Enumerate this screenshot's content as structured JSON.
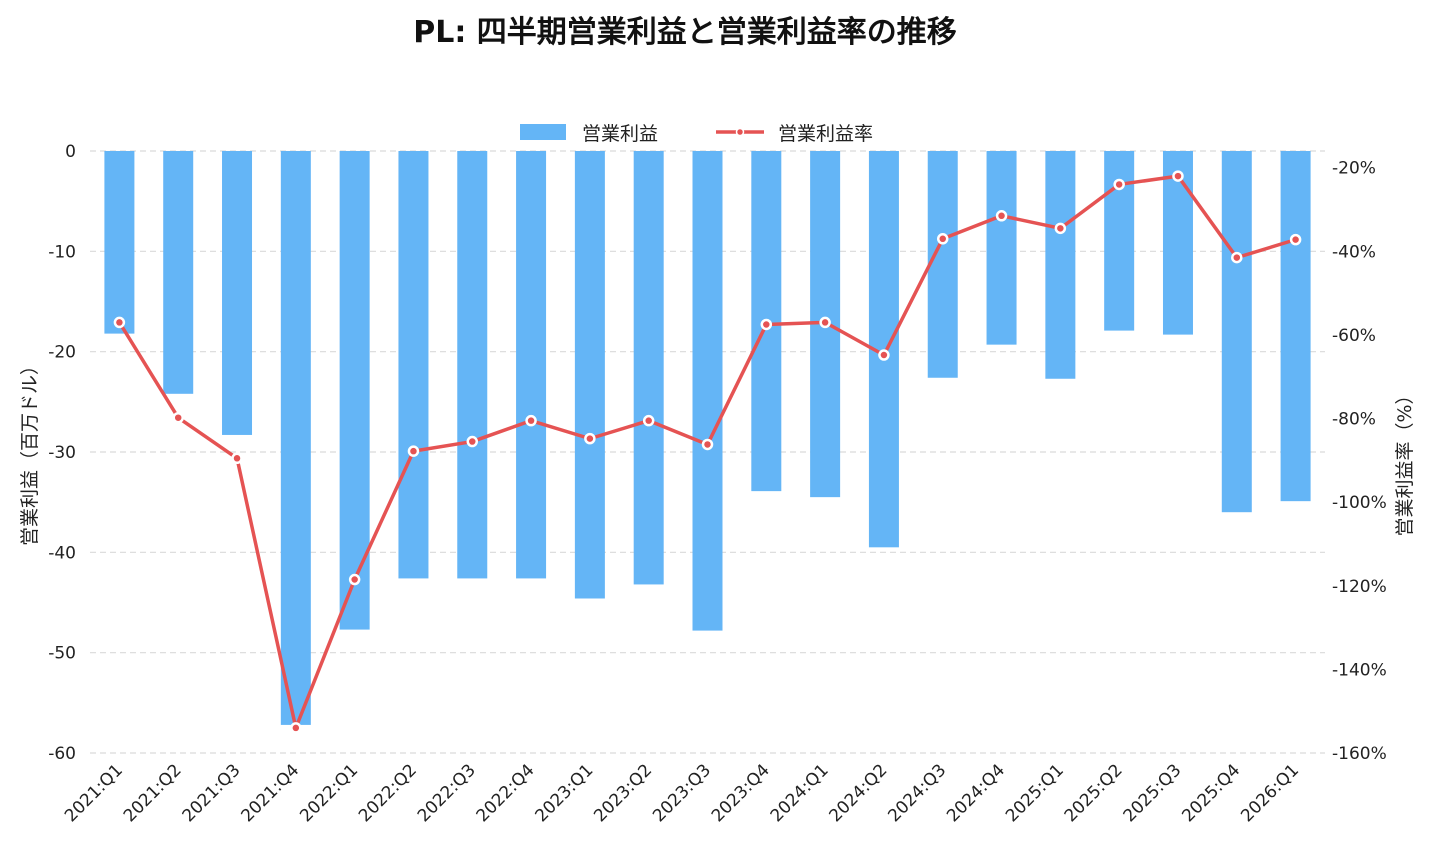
{
  "chart_data": {
    "type": "bar",
    "title": "PL: 四半期営業利益と営業利益率の推移",
    "categories": [
      "2021:Q1",
      "2021:Q2",
      "2021:Q3",
      "2021:Q4",
      "2022:Q1",
      "2022:Q2",
      "2022:Q3",
      "2022:Q4",
      "2023:Q1",
      "2023:Q2",
      "2023:Q3",
      "2023:Q4",
      "2024:Q1",
      "2024:Q2",
      "2024:Q3",
      "2024:Q4",
      "2025:Q1",
      "2025:Q2",
      "2025:Q3",
      "2025:Q4",
      "2026:Q1"
    ],
    "series": [
      {
        "name": "営業利益",
        "type": "bar",
        "axis": "left",
        "color": "#64B5F6",
        "values": [
          -18.2,
          -24.2,
          -28.3,
          -57.2,
          -47.7,
          -42.6,
          -42.6,
          -42.6,
          -44.6,
          -43.2,
          -47.8,
          -33.9,
          -34.5,
          -39.5,
          -22.6,
          -19.3,
          -22.7,
          -17.9,
          -18.3,
          -36.0,
          -34.9
        ]
      },
      {
        "name": "営業利益率",
        "type": "line",
        "axis": "right",
        "color": "#E55353",
        "values": [
          -57.0,
          -79.8,
          -89.5,
          -154.0,
          -118.5,
          -87.8,
          -85.5,
          -80.5,
          -84.8,
          -80.5,
          -86.2,
          -57.5,
          -57.0,
          -64.8,
          -37.0,
          -31.5,
          -34.5,
          -24.0,
          -22.0,
          -41.5,
          -37.2
        ]
      }
    ],
    "ylabel": "営業利益（百万ドル）",
    "y2label": "営業利益率（%）",
    "ylim": [
      -60,
      0
    ],
    "y2lim": [
      -160,
      -16
    ],
    "yticks": [
      0,
      -10,
      -20,
      -30,
      -40,
      -50,
      -60
    ],
    "y2ticks": [
      "-20%",
      "-40%",
      "-60%",
      "-80%",
      "-100%",
      "-120%",
      "-140%",
      "-160%"
    ],
    "y2tick_values": [
      -20,
      -40,
      -60,
      -80,
      -100,
      -120,
      -140,
      -160
    ],
    "grid": true,
    "legend": "top-center"
  }
}
